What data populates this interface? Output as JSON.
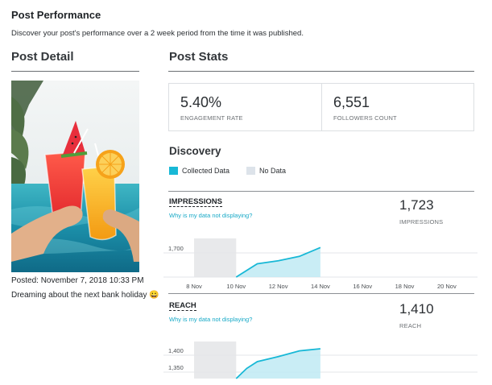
{
  "header": {
    "title": "Post Performance",
    "subtitle": "Discover your post's performance over a 2 week period from the time it was published."
  },
  "post_detail": {
    "heading": "Post Detail",
    "posted": "Posted: November 7, 2018 10:33 PM",
    "caption": "Dreaming about the next bank holiday 😀"
  },
  "post_stats": {
    "heading": "Post Stats",
    "engagement_rate": {
      "value": "5.40%",
      "label": "ENGAGEMENT RATE"
    },
    "followers_count": {
      "value": "6,551",
      "label": "FOLLOWERS COUNT"
    }
  },
  "discovery": {
    "heading": "Discovery",
    "legend": [
      {
        "label": "Collected Data",
        "color": "#18b8d6"
      },
      {
        "label": "No Data",
        "color": "#dde3ea"
      }
    ],
    "help_link": "Why is my data not displaying?",
    "impressions": {
      "title": "IMPRESSIONS",
      "value": "1,723",
      "label": "IMPRESSIONS"
    },
    "reach": {
      "title": "REACH",
      "value": "1,410",
      "label": "REACH"
    }
  },
  "chart_data": [
    {
      "type": "area",
      "title": "IMPRESSIONS",
      "x": [
        "8 Nov",
        "10 Nov",
        "12 Nov",
        "14 Nov",
        "16 Nov",
        "18 Nov",
        "20 Nov"
      ],
      "ytick_labels": [
        "1,700"
      ],
      "no_data_range": [
        "8 Nov",
        "10 Nov"
      ],
      "series": [
        {
          "x": [
            "10 Nov",
            "11 Nov",
            "12 Nov",
            "13 Nov",
            "14 Nov"
          ],
          "values": [
            1620,
            1665,
            1675,
            1690,
            1720
          ]
        }
      ],
      "ylim": [
        1620,
        1740
      ],
      "grid": true
    },
    {
      "type": "area",
      "title": "REACH",
      "ytick_labels": [
        "1,400",
        "1,350"
      ],
      "no_data_range": [
        "8 Nov",
        "10 Nov"
      ],
      "series": [
        {
          "x": [
            "10 Nov",
            "10.5 Nov",
            "11 Nov",
            "12 Nov",
            "13 Nov",
            "14 Nov"
          ],
          "values": [
            1320,
            1350,
            1370,
            1385,
            1402,
            1408
          ]
        }
      ],
      "ylim": [
        1320,
        1420
      ],
      "grid": true
    }
  ],
  "colors": {
    "accent": "#18b8d6",
    "no_data": "#e8e9eb",
    "link": "#17a9c7"
  }
}
